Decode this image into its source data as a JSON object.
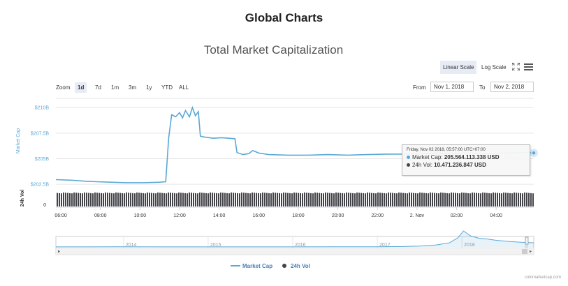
{
  "page": {
    "title": "Global Charts",
    "credit": "coinmarketcap.com"
  },
  "controls": {
    "scales": [
      {
        "label": "Linear Scale",
        "active": true
      },
      {
        "label": "Log Scale",
        "active": false
      }
    ],
    "zoom_label": "Zoom",
    "zoom_buttons": [
      {
        "label": "1d",
        "active": true
      },
      {
        "label": "7d",
        "active": false
      },
      {
        "label": "1m",
        "active": false
      },
      {
        "label": "3m",
        "active": false
      },
      {
        "label": "1y",
        "active": false
      },
      {
        "label": "YTD",
        "active": false
      },
      {
        "label": "ALL",
        "active": false
      }
    ],
    "from_label": "From",
    "from_value": "Nov 1, 2018",
    "to_label": "To",
    "to_value": "Nov 2, 2018"
  },
  "tooltip": {
    "header": "Friday, Nov 02 2018, 05:57:00 UTC+07:00",
    "market_cap_label": "Market Cap:",
    "market_cap_value": "205.564.113.338 USD",
    "vol_label": "24h Vol:",
    "vol_value": "10.471.236.847 USD"
  },
  "colors": {
    "market_cap": "#5ba8d6",
    "volume": "#434348",
    "navigator": "#5ba8d6",
    "active_bg": "#e6ebf5"
  },
  "chart_data": {
    "type": "line",
    "title": "Total Market Capitalization",
    "ylabel": "Market Cap",
    "ylabel_volume": "24h Vol",
    "y_tick_values": [
      202.5,
      205,
      207.5,
      210
    ],
    "y_tick_labels": [
      "$202.5B",
      "$205B",
      "$207.5B",
      "$210B"
    ],
    "ylim": [
      202.1,
      210.9
    ],
    "volume_tick_label": "0",
    "x_range_hours": [
      5.75,
      29.9
    ],
    "x_ticks": [
      {
        "h": 6,
        "label": "06:00"
      },
      {
        "h": 8,
        "label": "08:00"
      },
      {
        "h": 10,
        "label": "10:00"
      },
      {
        "h": 12,
        "label": "12:00"
      },
      {
        "h": 14,
        "label": "14:00"
      },
      {
        "h": 16,
        "label": "16:00"
      },
      {
        "h": 18,
        "label": "18:00"
      },
      {
        "h": 20,
        "label": "20:00"
      },
      {
        "h": 22,
        "label": "22:00"
      },
      {
        "h": 24,
        "label": "2. Nov"
      },
      {
        "h": 26,
        "label": "02:00"
      },
      {
        "h": 28,
        "label": "04:00"
      }
    ],
    "series": [
      {
        "name": "Market Cap",
        "unit": "B USD",
        "points": [
          [
            5.75,
            202.95
          ],
          [
            6.5,
            202.9
          ],
          [
            7.2,
            202.8
          ],
          [
            7.8,
            202.75
          ],
          [
            8.5,
            202.7
          ],
          [
            9.3,
            202.65
          ],
          [
            10.2,
            202.65
          ],
          [
            11.0,
            202.7
          ],
          [
            11.3,
            202.75
          ],
          [
            11.45,
            207.0
          ],
          [
            11.6,
            209.3
          ],
          [
            11.8,
            209.1
          ],
          [
            12.0,
            209.5
          ],
          [
            12.15,
            209.0
          ],
          [
            12.3,
            209.7
          ],
          [
            12.5,
            209.1
          ],
          [
            12.65,
            210.0
          ],
          [
            12.8,
            209.2
          ],
          [
            12.95,
            209.6
          ],
          [
            13.05,
            207.2
          ],
          [
            13.3,
            207.1
          ],
          [
            13.7,
            207.0
          ],
          [
            14.1,
            207.05
          ],
          [
            14.5,
            207.0
          ],
          [
            14.8,
            206.95
          ],
          [
            14.9,
            205.6
          ],
          [
            15.2,
            205.4
          ],
          [
            15.5,
            205.5
          ],
          [
            15.7,
            205.8
          ],
          [
            16.0,
            205.55
          ],
          [
            16.5,
            205.4
          ],
          [
            17.5,
            205.35
          ],
          [
            18.5,
            205.35
          ],
          [
            19.5,
            205.4
          ],
          [
            20.5,
            205.35
          ],
          [
            21.5,
            205.4
          ],
          [
            22.5,
            205.45
          ],
          [
            23.5,
            205.45
          ],
          [
            24.5,
            205.5
          ],
          [
            25.5,
            205.5
          ],
          [
            26.5,
            205.55
          ],
          [
            27.5,
            205.5
          ],
          [
            28.5,
            205.55
          ],
          [
            29.4,
            205.6
          ],
          [
            29.9,
            205.56
          ]
        ]
      },
      {
        "name": "24h Vol",
        "unit": "B USD",
        "approx_value": 10.47
      }
    ],
    "navigator": {
      "year_labels": [
        "2014",
        "2015",
        "2016",
        "2017",
        "2018"
      ],
      "year_starts": [
        2014,
        2015,
        2016,
        2017,
        2018
      ],
      "range": [
        2013.2,
        2018.85
      ],
      "history": [
        [
          2013.2,
          0.02
        ],
        [
          2013.9,
          0.08
        ],
        [
          2014.5,
          0.05
        ],
        [
          2015.0,
          0.03
        ],
        [
          2015.5,
          0.03
        ],
        [
          2016.0,
          0.05
        ],
        [
          2016.5,
          0.07
        ],
        [
          2017.0,
          0.12
        ],
        [
          2017.3,
          0.2
        ],
        [
          2017.5,
          0.45
        ],
        [
          2017.7,
          1.0
        ],
        [
          2017.85,
          2.0
        ],
        [
          2017.95,
          4.4
        ],
        [
          2018.02,
          7.9
        ],
        [
          2018.1,
          5.5
        ],
        [
          2018.2,
          4.3
        ],
        [
          2018.3,
          3.9
        ],
        [
          2018.4,
          3.3
        ],
        [
          2018.55,
          2.7
        ],
        [
          2018.7,
          2.3
        ],
        [
          2018.85,
          2.05
        ]
      ]
    },
    "legend": [
      "Market Cap",
      "24h Vol"
    ]
  }
}
